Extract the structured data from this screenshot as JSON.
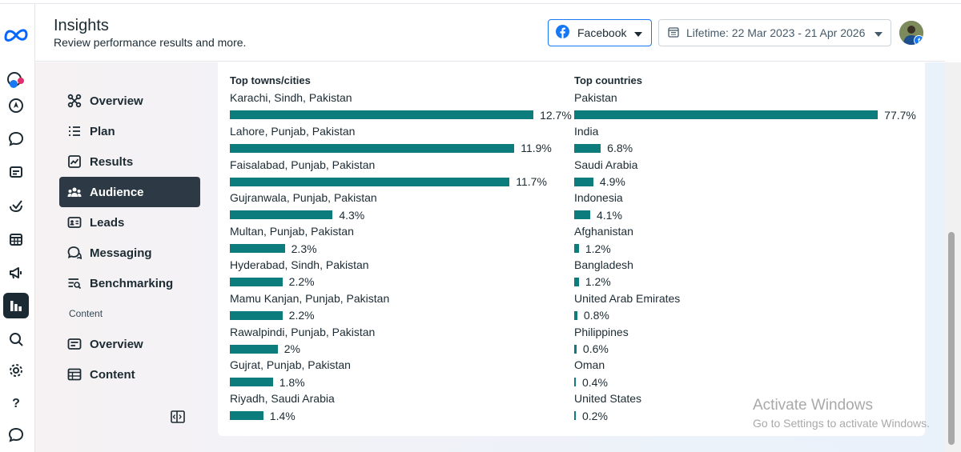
{
  "app": {
    "title": "Insights",
    "subtitle": "Review performance results and more."
  },
  "header": {
    "platform_label": "Facebook",
    "date_range_label": "Lifetime: 22 Mar 2023 - 21 Apr 2026"
  },
  "left_rail": {
    "icons": [
      "meta-logo-icon",
      "pages-profile-icon",
      "compass-icon",
      "chat-bubble-icon",
      "content-icon",
      "planner-icon",
      "calendar-icon",
      "megaphone-icon",
      "insights-icon",
      "search-icon",
      "settings-icon",
      "help-icon",
      "feedback-icon"
    ]
  },
  "nav": {
    "items": [
      {
        "label": "Overview",
        "icon": "overview-icon"
      },
      {
        "label": "Plan",
        "icon": "plan-icon"
      },
      {
        "label": "Results",
        "icon": "results-icon"
      },
      {
        "label": "Audience",
        "icon": "audience-icon",
        "active": true
      },
      {
        "label": "Leads",
        "icon": "leads-icon"
      },
      {
        "label": "Messaging",
        "icon": "messaging-icon"
      },
      {
        "label": "Benchmarking",
        "icon": "benchmarking-icon"
      }
    ],
    "content_section_label": "Content",
    "content_items": [
      {
        "label": "Overview",
        "icon": "content-overview-icon"
      },
      {
        "label": "Content",
        "icon": "content-table-icon"
      }
    ]
  },
  "top_cities": {
    "title": "Top towns/cities",
    "rows": [
      {
        "name": "Karachi, Sindh, Pakistan",
        "pct_label": "12.7%",
        "value": 12.7
      },
      {
        "name": "Lahore, Punjab, Pakistan",
        "pct_label": "11.9%",
        "value": 11.9
      },
      {
        "name": "Faisalabad, Punjab, Pakistan",
        "pct_label": "11.7%",
        "value": 11.7
      },
      {
        "name": "Gujranwala, Punjab, Pakistan",
        "pct_label": "4.3%",
        "value": 4.3
      },
      {
        "name": "Multan, Punjab, Pakistan",
        "pct_label": "2.3%",
        "value": 2.3
      },
      {
        "name": "Hyderabad, Sindh, Pakistan",
        "pct_label": "2.2%",
        "value": 2.2
      },
      {
        "name": "Mamu Kanjan, Punjab, Pakistan",
        "pct_label": "2.2%",
        "value": 2.2
      },
      {
        "name": "Rawalpindi, Punjab, Pakistan",
        "pct_label": "2%",
        "value": 2
      },
      {
        "name": "Gujrat, Punjab, Pakistan",
        "pct_label": "1.8%",
        "value": 1.8
      },
      {
        "name": "Riyadh, Saudi Arabia",
        "pct_label": "1.4%",
        "value": 1.4
      }
    ]
  },
  "top_countries": {
    "title": "Top countries",
    "rows": [
      {
        "name": "Pakistan",
        "pct_label": "77.7%",
        "value": 77.7
      },
      {
        "name": "India",
        "pct_label": "6.8%",
        "value": 6.8
      },
      {
        "name": "Saudi Arabia",
        "pct_label": "4.9%",
        "value": 4.9
      },
      {
        "name": "Indonesia",
        "pct_label": "4.1%",
        "value": 4.1
      },
      {
        "name": "Afghanistan",
        "pct_label": "1.2%",
        "value": 1.2
      },
      {
        "name": "Bangladesh",
        "pct_label": "1.2%",
        "value": 1.2
      },
      {
        "name": "United Arab Emirates",
        "pct_label": "0.8%",
        "value": 0.8
      },
      {
        "name": "Philippines",
        "pct_label": "0.6%",
        "value": 0.6
      },
      {
        "name": "Oman",
        "pct_label": "0.4%",
        "value": 0.4
      },
      {
        "name": "United States",
        "pct_label": "0.2%",
        "value": 0.2
      }
    ]
  },
  "watermark": {
    "line1": "Activate Windows",
    "line2": "Go to Settings to activate Windows."
  },
  "colors": {
    "bar": "#0d7c7c",
    "accent": "#1877f2",
    "active_nav": "#2d3a45"
  }
}
